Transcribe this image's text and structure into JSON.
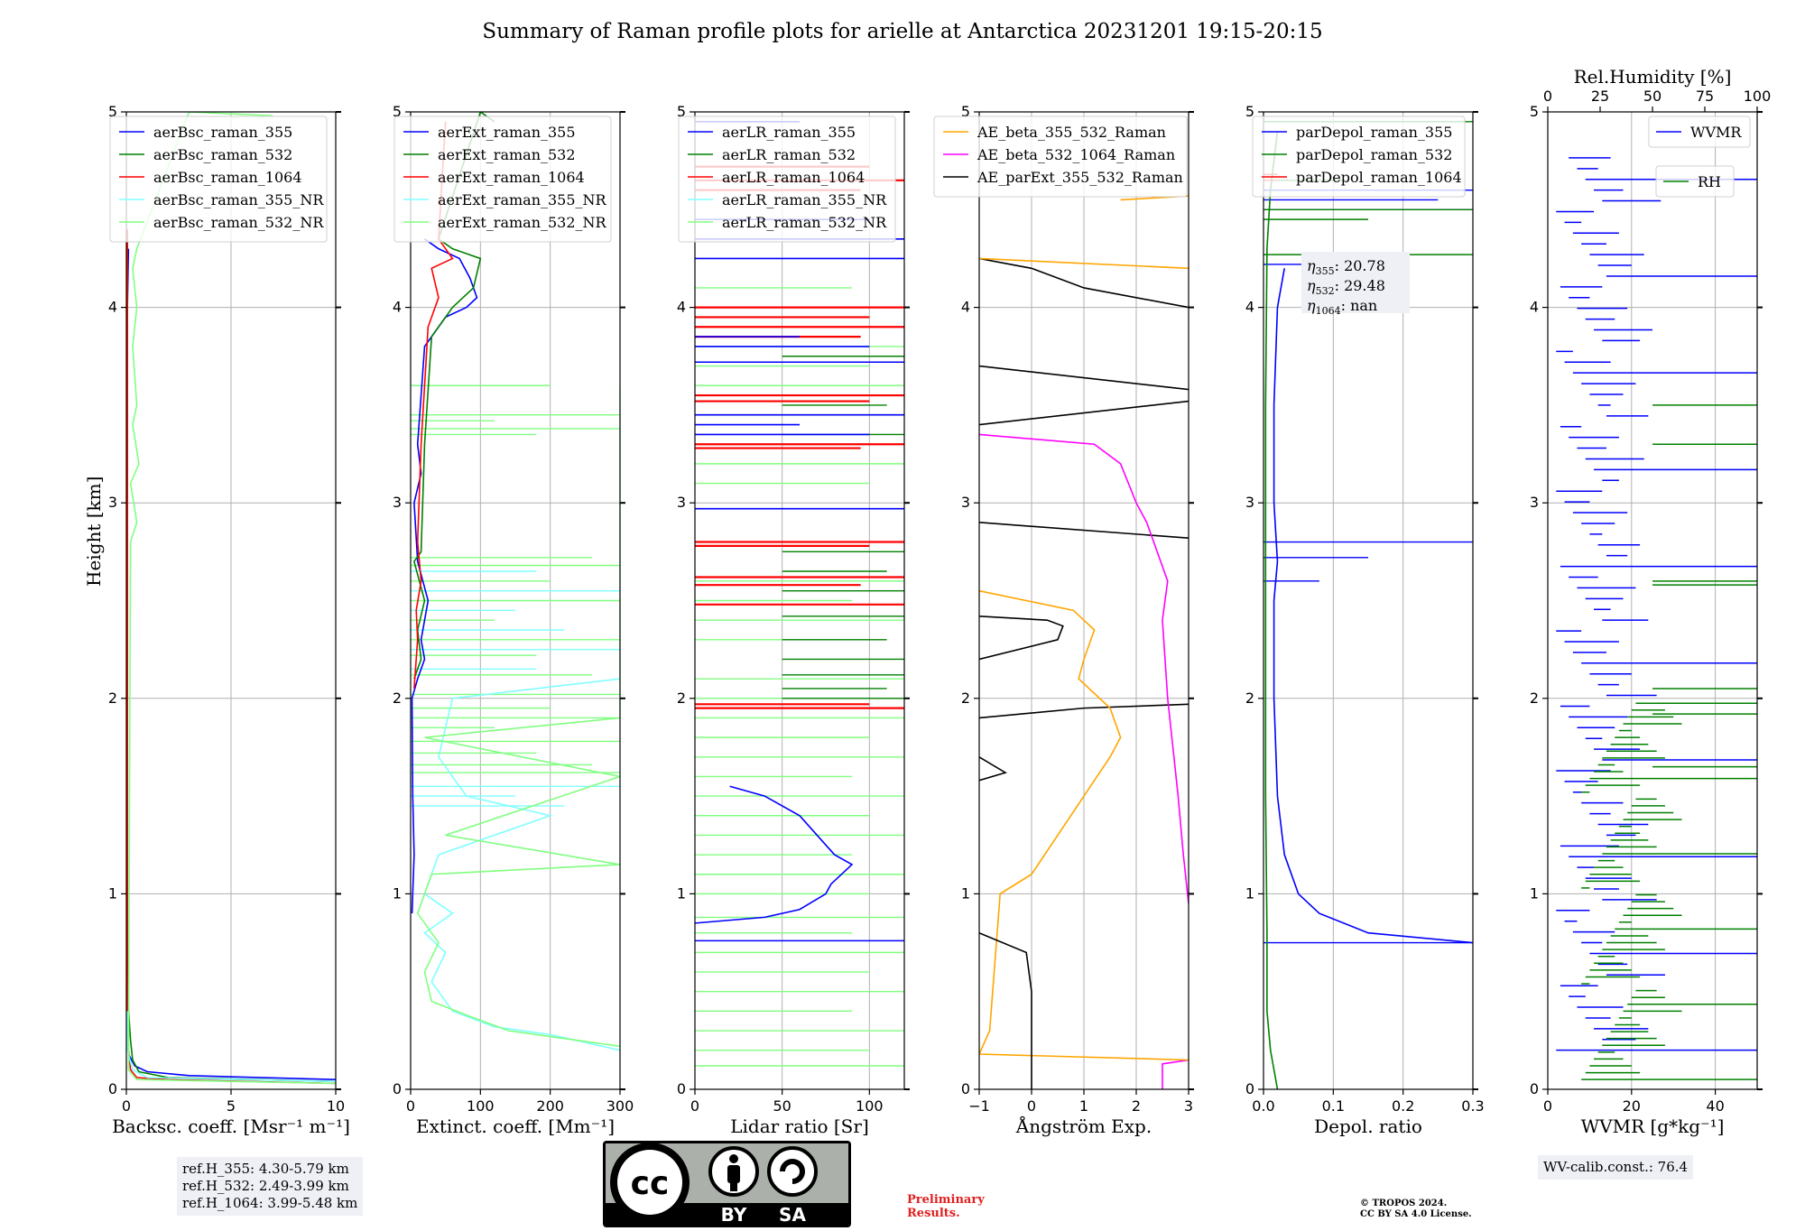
{
  "title": "Summary of Raman profile plots for arielle at Antarctica 20231201 19:15-20:15",
  "y_axis_label": "Height [km]",
  "ref_heights": [
    "ref.H_355: 4.30-5.79 km",
    "ref.H_532: 2.49-3.99 km",
    "ref.H_1064: 3.99-5.48 km"
  ],
  "wv_calib": "WV-calib.const.: 76.4",
  "preliminary": [
    "Preliminary",
    "Results."
  ],
  "copyright": [
    "© TROPOS 2024.",
    "CC BY SA 4.0 License."
  ],
  "license_badge": {
    "cc": "cc",
    "by": "BY",
    "sa": "SA"
  },
  "colors": {
    "blue": "#0000ff",
    "green": "#008000",
    "red": "#ff0000",
    "cyan": "#80ffff",
    "lightgreen": "#80ff80",
    "orange": "#ffa500",
    "magenta": "#ff00ff",
    "black": "#000000"
  },
  "chart_data": [
    {
      "type": "line",
      "id": "backscatter",
      "xlabel": "Backsc. coeff. [Msr⁻¹ m⁻¹]",
      "xlim": [
        0,
        10
      ],
      "xticks": [
        0,
        5,
        10
      ],
      "ylim": [
        0,
        5
      ],
      "yticks": [
        0,
        1,
        2,
        3,
        4,
        5
      ],
      "legend": "top-center",
      "series": [
        {
          "name": "aerBsc_raman_355",
          "color": "#0000ff",
          "points": [
            [
              10,
              0.05
            ],
            [
              3,
              0.07
            ],
            [
              1,
              0.09
            ],
            [
              0.4,
              0.12
            ],
            [
              0.1,
              0.18
            ],
            [
              0.05,
              0.4
            ],
            [
              0.05,
              1.0
            ],
            [
              0.05,
              2.0
            ],
            [
              0.05,
              3.0
            ],
            [
              0.05,
              4.0
            ],
            [
              0.1,
              4.3
            ]
          ]
        },
        {
          "name": "aerBsc_raman_532",
          "color": "#008000",
          "points": [
            [
              10,
              0.04
            ],
            [
              2,
              0.06
            ],
            [
              0.6,
              0.09
            ],
            [
              0.3,
              0.15
            ],
            [
              0.2,
              0.25
            ],
            [
              0.05,
              0.5
            ],
            [
              0.05,
              1.5
            ],
            [
              0.05,
              3.0
            ],
            [
              0.05,
              4.3
            ]
          ]
        },
        {
          "name": "aerBsc_raman_1064",
          "color": "#ff0000",
          "points": [
            [
              10,
              0.03
            ],
            [
              2,
              0.05
            ],
            [
              0.5,
              0.06
            ],
            [
              0.2,
              0.1
            ],
            [
              0.1,
              0.2
            ],
            [
              0.05,
              0.4
            ],
            [
              0.05,
              1.5
            ],
            [
              0.05,
              3.0
            ],
            [
              0.05,
              4.4
            ]
          ]
        },
        {
          "name": "aerBsc_raman_355_NR",
          "color": "#80ffff",
          "points": [
            [
              10,
              0.04
            ],
            [
              1,
              0.06
            ],
            [
              0.3,
              0.1
            ],
            [
              0.05,
              0.2
            ],
            [
              0.05,
              0.4
            ]
          ]
        },
        {
          "name": "aerBsc_raman_532_NR",
          "color": "#80ff80",
          "points": [
            [
              10,
              0.03
            ],
            [
              0.5,
              0.05
            ],
            [
              0.1,
              0.1
            ],
            [
              0.2,
              2.8
            ],
            [
              0.5,
              2.9
            ],
            [
              0.2,
              3.1
            ],
            [
              0.6,
              3.2
            ],
            [
              0.3,
              3.4
            ],
            [
              0.5,
              3.5
            ],
            [
              0.3,
              3.8
            ],
            [
              0.5,
              4.0
            ],
            [
              0.3,
              4.2
            ],
            [
              0.5,
              4.3
            ],
            [
              3,
              5.0
            ],
            [
              7,
              4.98
            ]
          ]
        }
      ]
    },
    {
      "type": "line",
      "id": "extinction",
      "xlabel": "Extinct. coeff. [Mm⁻¹]",
      "xlim": [
        0,
        300
      ],
      "xticks": [
        0,
        100,
        200,
        300
      ],
      "ylim": [
        0,
        5
      ],
      "yticks": [
        0,
        1,
        2,
        3,
        4,
        5
      ],
      "legend": "top-center",
      "series": [
        {
          "name": "aerExt_raman_355",
          "color": "#0000ff",
          "points": [
            [
              2,
              0.9
            ],
            [
              5,
              1.2
            ],
            [
              3,
              1.5
            ],
            [
              2,
              2.0
            ],
            [
              10,
              2.1
            ],
            [
              20,
              2.2
            ],
            [
              15,
              2.3
            ],
            [
              25,
              2.5
            ],
            [
              10,
              2.7
            ],
            [
              5,
              3.0
            ],
            [
              15,
              3.15
            ],
            [
              10,
              3.3
            ],
            [
              20,
              3.8
            ],
            [
              50,
              3.95
            ],
            [
              80,
              4.0
            ],
            [
              95,
              4.05
            ],
            [
              85,
              4.15
            ],
            [
              70,
              4.25
            ],
            [
              40,
              4.3
            ],
            [
              20,
              4.35
            ]
          ]
        },
        {
          "name": "aerExt_raman_532",
          "color": "#008000",
          "points": [
            [
              5,
              2.1
            ],
            [
              15,
              2.2
            ],
            [
              10,
              2.35
            ],
            [
              20,
              2.5
            ],
            [
              5,
              2.7
            ],
            [
              15,
              2.75
            ],
            [
              20,
              3.3
            ],
            [
              30,
              3.85
            ],
            [
              60,
              4.0
            ],
            [
              90,
              4.1
            ],
            [
              100,
              4.25
            ],
            [
              60,
              4.3
            ],
            [
              40,
              4.35
            ],
            [
              100,
              5.0
            ],
            [
              120,
              4.95
            ]
          ]
        },
        {
          "name": "aerExt_raman_1064",
          "color": "#ff0000",
          "points": [
            [
              5,
              2.05
            ],
            [
              10,
              2.3
            ],
            [
              8,
              2.45
            ],
            [
              15,
              2.6
            ],
            [
              10,
              2.8
            ],
            [
              15,
              3.3
            ],
            [
              25,
              3.9
            ],
            [
              40,
              4.05
            ],
            [
              30,
              4.2
            ],
            [
              60,
              4.25
            ],
            [
              40,
              4.35
            ],
            [
              50,
              4.95
            ]
          ]
        },
        {
          "name": "aerExt_raman_355_NR",
          "color": "#80ffff",
          "points": [
            [
              300,
              0.2
            ],
            [
              200,
              0.28
            ],
            [
              120,
              0.32
            ],
            [
              60,
              0.4
            ],
            [
              40,
              0.5
            ],
            [
              30,
              0.55
            ],
            [
              50,
              0.7
            ],
            [
              20,
              0.8
            ],
            [
              60,
              0.9
            ],
            [
              20,
              1.0
            ],
            [
              40,
              1.2
            ],
            [
              200,
              1.4
            ],
            [
              80,
              1.5
            ],
            [
              40,
              1.7
            ],
            [
              60,
              2.0
            ],
            [
              300,
              2.1
            ]
          ]
        },
        {
          "name": "aerExt_raman_532_NR",
          "color": "#80ff80",
          "points": [
            [
              300,
              0.22
            ],
            [
              220,
              0.26
            ],
            [
              140,
              0.3
            ],
            [
              80,
              0.38
            ],
            [
              30,
              0.45
            ],
            [
              20,
              0.6
            ],
            [
              40,
              0.75
            ],
            [
              10,
              0.9
            ],
            [
              30,
              1.1
            ],
            [
              300,
              1.15
            ],
            [
              50,
              1.3
            ],
            [
              300,
              1.6
            ],
            [
              20,
              1.8
            ],
            [
              300,
              1.9
            ],
            [
              300,
              3.4
            ],
            [
              300,
              3.6
            ]
          ]
        }
      ]
    },
    {
      "type": "line",
      "id": "lidar_ratio",
      "xlabel": "Lidar ratio [Sr]",
      "xlim": [
        0,
        120
      ],
      "xticks": [
        0,
        50,
        100
      ],
      "ylim": [
        0,
        5
      ],
      "yticks": [
        0,
        1,
        2,
        3,
        4,
        5
      ],
      "legend": "top-center",
      "series": [
        {
          "name": "aerLR_raman_355",
          "color": "#0000ff",
          "points": [
            [
              0,
              0.85
            ],
            [
              40,
              0.88
            ],
            [
              60,
              0.92
            ],
            [
              75,
              1.0
            ],
            [
              78,
              1.05
            ],
            [
              90,
              1.15
            ],
            [
              80,
              1.2
            ],
            [
              70,
              1.3
            ],
            [
              60,
              1.4
            ],
            [
              40,
              1.5
            ],
            [
              20,
              1.55
            ]
          ]
        },
        {
          "name": "aerLR_raman_532",
          "color": "#008000",
          "points": []
        },
        {
          "name": "aerLR_raman_1064",
          "color": "#ff0000",
          "points": []
        },
        {
          "name": "aerLR_raman_355_NR",
          "color": "#80ffff",
          "points": []
        },
        {
          "name": "aerLR_raman_532_NR",
          "color": "#80ff80",
          "points": []
        }
      ]
    },
    {
      "type": "line",
      "id": "angstrom",
      "xlabel": "Ångström Exp.",
      "xlim": [
        -1,
        3
      ],
      "xticks": [
        -1,
        0,
        1,
        2,
        3
      ],
      "ylim": [
        0,
        5
      ],
      "yticks": [
        0,
        1,
        2,
        3,
        4,
        5
      ],
      "legend": "top-right",
      "series": [
        {
          "name": "AE_beta_355_532_Raman",
          "color": "#ffa500",
          "points": [
            [
              3,
              0.15
            ],
            [
              -1,
              0.18
            ],
            [
              -0.8,
              0.3
            ],
            [
              -0.6,
              1.0
            ],
            [
              0,
              1.1
            ],
            [
              0.5,
              1.3
            ],
            [
              1.0,
              1.5
            ],
            [
              1.5,
              1.7
            ],
            [
              1.7,
              1.8
            ],
            [
              1.5,
              1.95
            ],
            [
              0.9,
              2.1
            ],
            [
              1.0,
              2.2
            ],
            [
              1.2,
              2.35
            ],
            [
              0.8,
              2.45
            ],
            [
              -1,
              2.55
            ]
          ]
        },
        {
          "name": "AE_beta_532_1064_Raman",
          "color": "#ff00ff",
          "points": [
            [
              3,
              0.95
            ],
            [
              2.9,
              1.2
            ],
            [
              2.8,
              1.5
            ],
            [
              2.6,
              2.0
            ],
            [
              2.5,
              2.4
            ],
            [
              2.6,
              2.6
            ],
            [
              2.2,
              2.9
            ],
            [
              2.0,
              3.0
            ],
            [
              1.7,
              3.2
            ],
            [
              1.2,
              3.3
            ],
            [
              -1,
              3.35
            ]
          ]
        },
        {
          "name": "AE_parExt_355_532_Raman",
          "color": "#000000",
          "points": [
            [
              0,
              0.0
            ],
            [
              0,
              0.5
            ],
            [
              -0.1,
              0.7
            ],
            [
              -1,
              0.8
            ]
          ]
        }
      ]
    },
    {
      "type": "line",
      "id": "depolarization",
      "xlabel": "Depol. ratio",
      "xlim": [
        0,
        0.3
      ],
      "xticks": [
        0.0,
        0.1,
        0.2,
        0.3
      ],
      "ylim": [
        0,
        5
      ],
      "yticks": [
        0,
        1,
        2,
        3,
        4,
        5
      ],
      "legend": "top-center",
      "annotation": {
        "lines": [
          [
            "η",
            "355",
            ": 20.78"
          ],
          [
            "η",
            "532",
            ": 29.48"
          ],
          [
            "η",
            "1064",
            ": nan"
          ]
        ]
      },
      "series": [
        {
          "name": "parDepol_raman_355",
          "color": "#0000ff",
          "points": [
            [
              0.3,
              0.75
            ],
            [
              0.15,
              0.8
            ],
            [
              0.08,
              0.9
            ],
            [
              0.05,
              1.0
            ],
            [
              0.03,
              1.2
            ],
            [
              0.02,
              1.5
            ],
            [
              0.015,
              2.0
            ],
            [
              0.015,
              2.5
            ],
            [
              0.02,
              2.7
            ],
            [
              0.015,
              3.0
            ],
            [
              0.015,
              3.5
            ],
            [
              0.02,
              4.0
            ],
            [
              0.03,
              4.2
            ]
          ]
        },
        {
          "name": "parDepol_raman_532",
          "color": "#008000",
          "points": [
            [
              0.02,
              0.0
            ],
            [
              0.01,
              0.2
            ],
            [
              0.005,
              0.4
            ],
            [
              0.005,
              0.8
            ],
            [
              0.003,
              1.5
            ],
            [
              0.003,
              2.5
            ],
            [
              0.003,
              3.5
            ],
            [
              0.005,
              4.3
            ],
            [
              0.01,
              4.6
            ],
            [
              0.02,
              4.9
            ]
          ]
        },
        {
          "name": "parDepol_raman_1064",
          "color": "#ff0000",
          "points": []
        }
      ]
    },
    {
      "type": "line",
      "id": "water_vapor",
      "xlabel": "WVMR [g*kg⁻¹]",
      "xlim": [
        0,
        50
      ],
      "xticks": [
        0,
        20,
        40
      ],
      "top_axis_label": "Rel.Humidity [%]",
      "top_xlim": [
        0,
        100
      ],
      "top_xticks": [
        0,
        25,
        50,
        75,
        100
      ],
      "ylim": [
        0,
        5
      ],
      "yticks": [
        0,
        1,
        2,
        3,
        4,
        5
      ],
      "series": [
        {
          "name": "WVMR",
          "color": "#0000ff",
          "legend": "top-right"
        },
        {
          "name": "RH",
          "color": "#008000",
          "legend": "upper-right-inner"
        }
      ]
    }
  ]
}
